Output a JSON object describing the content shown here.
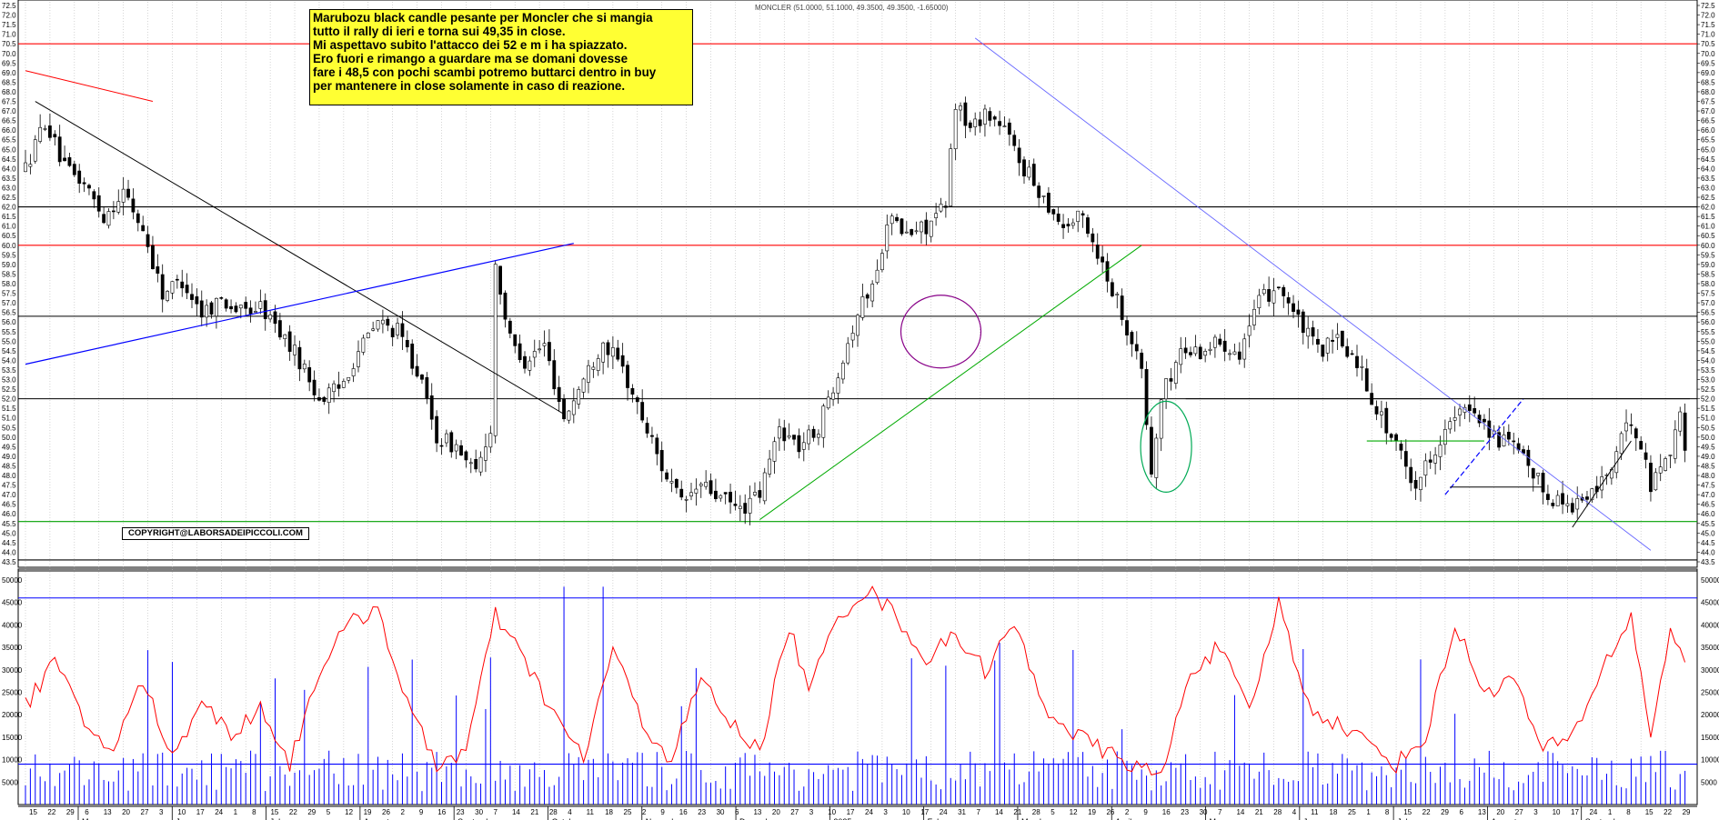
{
  "annotation": {
    "lines": [
      "Marubozu black candle pesante per Moncler che si mangia",
      "tutto il rally di ieri e torna sui 49,35 in close.",
      "Mi aspettavo subito l'attacco dei 52 e m i ha spiazzato.",
      "Ero fuori e rimango a guardare ma se domani dovesse",
      "fare i 48,5 con pochi scambi potremo buttarci dentro in buy",
      "per mantenere in close solamente in caso di reazione."
    ]
  },
  "copyright": "COPYRIGHT@LABORSADEIPICCOLI.COM",
  "chart_data": {
    "type": "candlestick",
    "title": "MONCLER (51.0000, 51.1000, 49.3500, 49.3500, -1.65000)",
    "price_axis": {
      "ymin": 43.5,
      "ymax": 72.5,
      "tick_step": 0.5
    },
    "volume_axis": {
      "ymin": 0,
      "ymax": 50000,
      "ticks": [
        5000,
        10000,
        15000,
        20000,
        25000,
        30000,
        35000,
        40000,
        45000,
        50000
      ]
    },
    "volume_axis_labels": [
      "5000",
      "10000",
      "15000",
      "20000",
      "25000",
      "30000",
      "35000",
      "40000",
      "45000",
      "50000"
    ],
    "day_labels": [
      "15",
      "22",
      "29",
      "6",
      "13",
      "20",
      "27",
      "3",
      "10",
      "17",
      "24",
      "1",
      "8",
      "15",
      "22",
      "29",
      "5",
      "12",
      "19",
      "26",
      "2",
      "9",
      "16",
      "23",
      "30",
      "7",
      "14",
      "21",
      "28",
      "4",
      "11",
      "18",
      "25",
      "2",
      "9",
      "16",
      "23",
      "30",
      "6",
      "13",
      "20",
      "27",
      "3",
      "10",
      "17",
      "24",
      "3",
      "10",
      "17",
      "24",
      "31",
      "7",
      "14",
      "21",
      "28",
      "5",
      "12",
      "19",
      "26",
      "2",
      "9",
      "16",
      "23",
      "30",
      "7",
      "14",
      "21",
      "28",
      "4",
      "11",
      "18",
      "25",
      "1",
      "8",
      "15",
      "22",
      "29",
      "6",
      "13",
      "20",
      "27",
      "3",
      "10",
      "17",
      "24",
      "1",
      "8",
      "15",
      "22",
      "29"
    ],
    "months": [
      "May",
      "June",
      "July",
      "August",
      "September",
      "October",
      "November",
      "December",
      "2025",
      "February",
      "March",
      "April",
      "May",
      "June",
      "July",
      "August",
      "September"
    ],
    "horizontal_levels": [
      {
        "value": 70.5,
        "color": "#ff0000"
      },
      {
        "value": 62.0,
        "color": "#000000"
      },
      {
        "value": 60.0,
        "color": "#ff0000"
      },
      {
        "value": 56.3,
        "color": "#000000"
      },
      {
        "value": 52.0,
        "color": "#000000"
      },
      {
        "value": 45.6,
        "color": "#00a000"
      },
      {
        "value": 43.6,
        "color": "#000000"
      }
    ],
    "volume_levels": [
      46000,
      9000
    ],
    "price_anchors": [
      [
        0,
        64.0
      ],
      [
        4,
        66.5
      ],
      [
        8,
        64.0
      ],
      [
        12,
        63.2
      ],
      [
        16,
        61.5
      ],
      [
        20,
        62.8
      ],
      [
        24,
        60.8
      ],
      [
        28,
        57.5
      ],
      [
        32,
        58.2
      ],
      [
        36,
        56.5
      ],
      [
        40,
        57.2
      ],
      [
        44,
        56.5
      ],
      [
        48,
        56.8
      ],
      [
        52,
        55.5
      ],
      [
        56,
        54.0
      ],
      [
        60,
        52.0
      ],
      [
        64,
        52.5
      ],
      [
        68,
        54.5
      ],
      [
        72,
        56.0
      ],
      [
        76,
        55.5
      ],
      [
        80,
        53.5
      ],
      [
        84,
        50.0
      ],
      [
        88,
        49.5
      ],
      [
        92,
        48.0
      ],
      [
        95,
        50.5
      ],
      [
        96,
        59.0
      ],
      [
        99,
        55.0
      ],
      [
        102,
        54.0
      ],
      [
        106,
        54.8
      ],
      [
        110,
        51.0
      ],
      [
        114,
        53.0
      ],
      [
        118,
        55.0
      ],
      [
        122,
        53.5
      ],
      [
        126,
        51.0
      ],
      [
        130,
        48.5
      ],
      [
        134,
        46.5
      ],
      [
        138,
        47.5
      ],
      [
        142,
        46.8
      ],
      [
        146,
        46.2
      ],
      [
        150,
        47.0
      ],
      [
        154,
        50.5
      ],
      [
        158,
        49.5
      ],
      [
        162,
        50.5
      ],
      [
        166,
        53.5
      ],
      [
        170,
        56.5
      ],
      [
        174,
        58.5
      ],
      [
        176,
        61.5
      ],
      [
        180,
        60.5
      ],
      [
        184,
        61.0
      ],
      [
        188,
        62.0
      ],
      [
        190,
        67.5
      ],
      [
        193,
        66.0
      ],
      [
        196,
        67.0
      ],
      [
        200,
        66.0
      ],
      [
        204,
        64.0
      ],
      [
        208,
        62.5
      ],
      [
        212,
        61.0
      ],
      [
        216,
        61.5
      ],
      [
        220,
        59.0
      ],
      [
        224,
        56.5
      ],
      [
        228,
        53.5
      ],
      [
        230,
        48.0
      ],
      [
        232,
        52.0
      ],
      [
        236,
        54.5
      ],
      [
        240,
        54.5
      ],
      [
        244,
        55.0
      ],
      [
        248,
        54.5
      ],
      [
        252,
        57.0
      ],
      [
        256,
        58.0
      ],
      [
        260,
        56.0
      ],
      [
        264,
        54.5
      ],
      [
        268,
        55.0
      ],
      [
        272,
        54.0
      ],
      [
        276,
        51.5
      ],
      [
        280,
        49.5
      ],
      [
        284,
        47.5
      ],
      [
        288,
        49.5
      ],
      [
        292,
        51.0
      ],
      [
        296,
        51.5
      ],
      [
        300,
        50.0
      ],
      [
        304,
        49.5
      ],
      [
        308,
        48.0
      ],
      [
        312,
        46.8
      ],
      [
        316,
        46.5
      ],
      [
        320,
        47.0
      ],
      [
        324,
        48.5
      ],
      [
        328,
        51.0
      ],
      [
        330,
        49.5
      ],
      [
        332,
        47.5
      ],
      [
        336,
        49.5
      ],
      [
        338,
        51.0
      ],
      [
        339,
        49.35
      ]
    ],
    "volume_anchors": [
      [
        0,
        22000
      ],
      [
        6,
        32000
      ],
      [
        12,
        18000
      ],
      [
        18,
        12000
      ],
      [
        24,
        28000
      ],
      [
        30,
        10000
      ],
      [
        36,
        24000
      ],
      [
        42,
        15000
      ],
      [
        48,
        22000
      ],
      [
        54,
        9000
      ],
      [
        60,
        30000
      ],
      [
        66,
        40000
      ],
      [
        72,
        44000
      ],
      [
        78,
        22000
      ],
      [
        84,
        9000
      ],
      [
        90,
        12000
      ],
      [
        96,
        42000
      ],
      [
        102,
        32000
      ],
      [
        108,
        20000
      ],
      [
        114,
        10000
      ],
      [
        120,
        35000
      ],
      [
        126,
        18000
      ],
      [
        132,
        10000
      ],
      [
        138,
        28000
      ],
      [
        144,
        18000
      ],
      [
        150,
        12000
      ],
      [
        156,
        40000
      ],
      [
        160,
        25000
      ],
      [
        166,
        42000
      ],
      [
        172,
        48000
      ],
      [
        178,
        42000
      ],
      [
        184,
        32000
      ],
      [
        190,
        38000
      ],
      [
        196,
        30000
      ],
      [
        202,
        40000
      ],
      [
        208,
        22000
      ],
      [
        214,
        16000
      ],
      [
        220,
        12000
      ],
      [
        226,
        9000
      ],
      [
        232,
        6000
      ],
      [
        238,
        30000
      ],
      [
        244,
        35000
      ],
      [
        250,
        20000
      ],
      [
        256,
        45000
      ],
      [
        262,
        22000
      ],
      [
        268,
        18000
      ],
      [
        274,
        14000
      ],
      [
        280,
        9000
      ],
      [
        286,
        15000
      ],
      [
        292,
        40000
      ],
      [
        298,
        25000
      ],
      [
        304,
        28000
      ],
      [
        310,
        12000
      ],
      [
        316,
        15000
      ],
      [
        322,
        30000
      ],
      [
        328,
        42000
      ],
      [
        332,
        15000
      ],
      [
        336,
        40000
      ],
      [
        339,
        30000
      ]
    ]
  }
}
